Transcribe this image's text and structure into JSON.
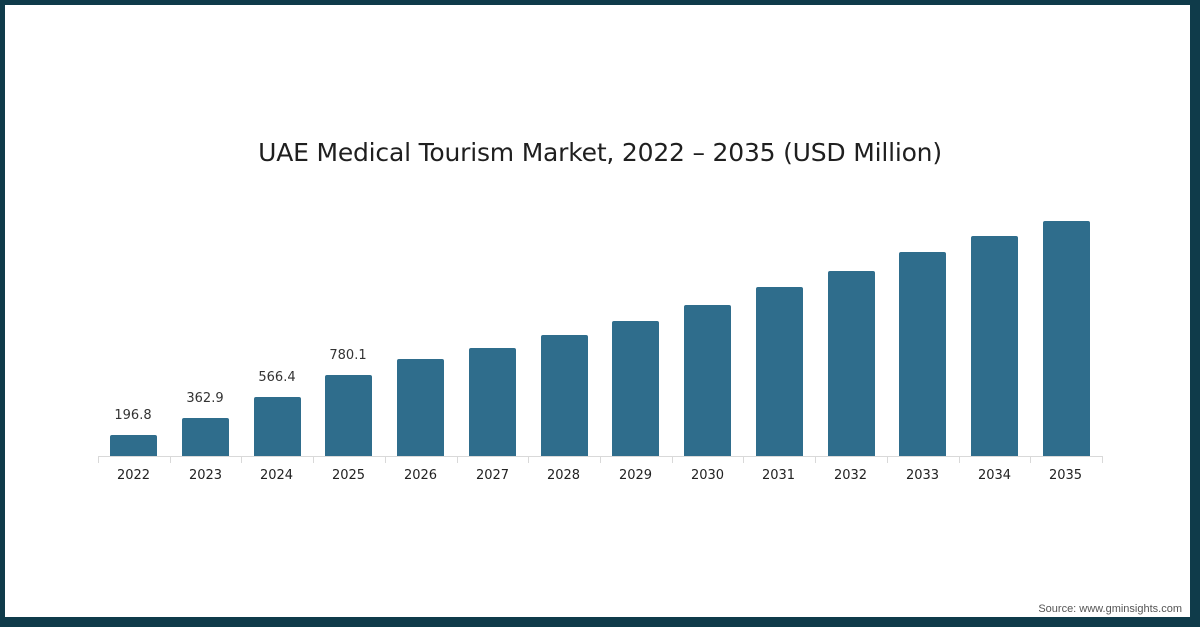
{
  "title": "UAE Medical Tourism Market, 2022 – 2035 (USD Million)",
  "source": "Source: www.gminsights.com",
  "colors": {
    "bar": "#2f6d8c",
    "border": "#0f3b4a",
    "background": "#ffffff"
  },
  "chart_data": {
    "type": "bar",
    "title": "UAE Medical Tourism Market, 2022 – 2035 (USD Million)",
    "xlabel": "",
    "ylabel": "USD Million",
    "categories": [
      "2022",
      "2023",
      "2024",
      "2025",
      "2026",
      "2027",
      "2028",
      "2029",
      "2030",
      "2031",
      "2032",
      "2033",
      "2034",
      "2035"
    ],
    "values": [
      196.8,
      362.9,
      566.4,
      780.1,
      930,
      1040,
      1160,
      1300,
      1450,
      1620,
      1780,
      1960,
      2110,
      2260
    ],
    "data_labels": [
      "196.8",
      "362.9",
      "566.4",
      "780.1",
      "",
      "",
      "",
      "",
      "",
      "",
      "",
      "",
      "",
      ""
    ],
    "ylim": [
      0,
      2400
    ],
    "grid": false,
    "legend": null,
    "y_axis_visible": false,
    "source": "Source: www.gminsights.com"
  }
}
